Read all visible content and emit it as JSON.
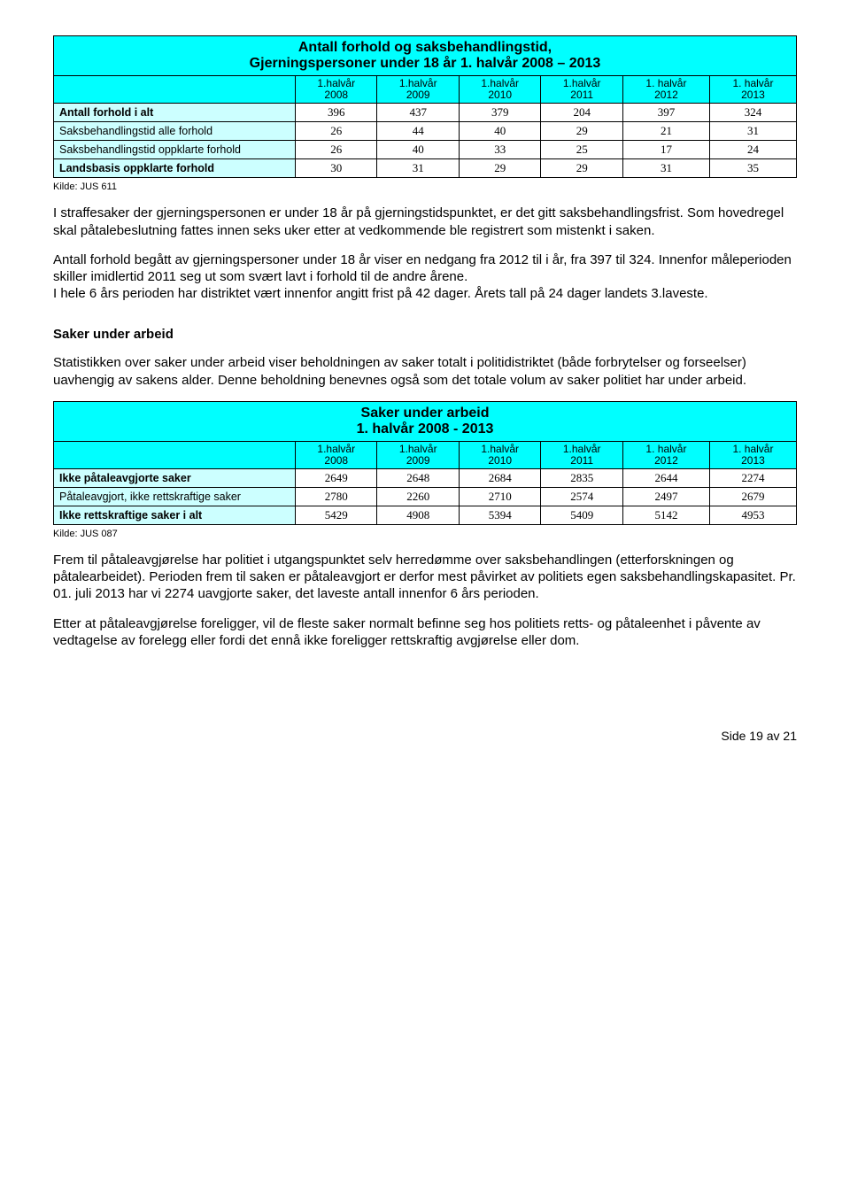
{
  "table1": {
    "title_line1": "Antall forhold og saksbehandlingstid,",
    "title_line2": "Gjerningspersoner under 18 år 1. halvår 2008 – 2013",
    "headers": [
      {
        "l1": "1.halvår",
        "l2": "2008"
      },
      {
        "l1": "1.halvår",
        "l2": "2009"
      },
      {
        "l1": "1.halvår",
        "l2": "2010"
      },
      {
        "l1": "1.halvår",
        "l2": "2011"
      },
      {
        "l1": "1. halvår",
        "l2": "2012"
      },
      {
        "l1": "1. halvår",
        "l2": "2013"
      }
    ],
    "rows": [
      {
        "label": "Antall forhold i alt",
        "bold": true,
        "v": [
          "396",
          "437",
          "379",
          "204",
          "397",
          "324"
        ]
      },
      {
        "label": "Saksbehandlingstid alle forhold",
        "bold": false,
        "v": [
          "26",
          "44",
          "40",
          "29",
          "21",
          "31"
        ]
      },
      {
        "label": "Saksbehandlingstid oppklarte forhold",
        "bold": false,
        "v": [
          "26",
          "40",
          "33",
          "25",
          "17",
          "24"
        ]
      },
      {
        "label": "Landsbasis oppklarte forhold",
        "bold": true,
        "v": [
          "30",
          "31",
          "29",
          "29",
          "31",
          "35"
        ]
      }
    ],
    "source": "Kilde: JUS 611"
  },
  "para1": "I straffesaker der gjerningspersonen er under 18 år på gjerningstidspunktet, er det gitt saksbehandlingsfrist. Som hovedregel skal påtalebeslutning fattes innen seks uker etter at vedkommende ble registrert som mistenkt i saken.",
  "para2": "Antall forhold begått av gjerningspersoner under 18 år viser en nedgang fra 2012 til i år, fra 397 til 324. Innenfor måleperioden skiller imidlertid 2011 seg ut som svært lavt i forhold til de andre årene.",
  "para2b": "I hele 6 års perioden har distriktet vært innenfor angitt frist på 42 dager. Årets tall på 24 dager landets 3.laveste.",
  "section_heading": "Saker under arbeid",
  "para3": "Statistikken over saker under arbeid viser beholdningen av saker totalt i politidistriktet (både forbrytelser og forseelser) uavhengig av sakens alder. Denne beholdning benevnes også som det totale volum av saker politiet har under arbeid.",
  "table2": {
    "title_line1": "Saker under arbeid",
    "title_line2": "1. halvår 2008 - 2013",
    "headers": [
      {
        "l1": "1.halvår",
        "l2": "2008"
      },
      {
        "l1": "1.halvår",
        "l2": "2009"
      },
      {
        "l1": "1.halvår",
        "l2": "2010"
      },
      {
        "l1": "1.halvår",
        "l2": "2011"
      },
      {
        "l1": "1. halvår",
        "l2": "2012"
      },
      {
        "l1": "1. halvår",
        "l2": "2013"
      }
    ],
    "rows": [
      {
        "label": "Ikke påtaleavgjorte saker",
        "bold": true,
        "v": [
          "2649",
          "2648",
          "2684",
          "2835",
          "2644",
          "2274"
        ]
      },
      {
        "label": "Påtaleavgjort, ikke rettskraftige saker",
        "bold": false,
        "v": [
          "2780",
          "2260",
          "2710",
          "2574",
          "2497",
          "2679"
        ]
      },
      {
        "label": "Ikke rettskraftige saker i alt",
        "bold": true,
        "v": [
          "5429",
          "4908",
          "5394",
          "5409",
          "5142",
          "4953"
        ]
      }
    ],
    "source": "Kilde: JUS 087"
  },
  "para4": "Frem til påtaleavgjørelse har politiet i utgangspunktet selv herredømme over saksbehandlingen (etterforskningen og påtalearbeidet).  Perioden frem til saken er påtaleavgjort er derfor mest påvirket av politiets egen saksbehandlingskapasitet. Pr. 01. juli 2013 har vi 2274 uavgjorte saker, det laveste antall innenfor 6 års perioden.",
  "para5": "Etter at påtaleavgjørelse foreligger, vil de fleste saker normalt befinne seg hos politiets retts- og påtaleenhet i påvente av vedtagelse av forelegg eller fordi det ennå ikke foreligger rettskraftig avgjørelse eller dom.",
  "footer": "Side 19 av 21"
}
